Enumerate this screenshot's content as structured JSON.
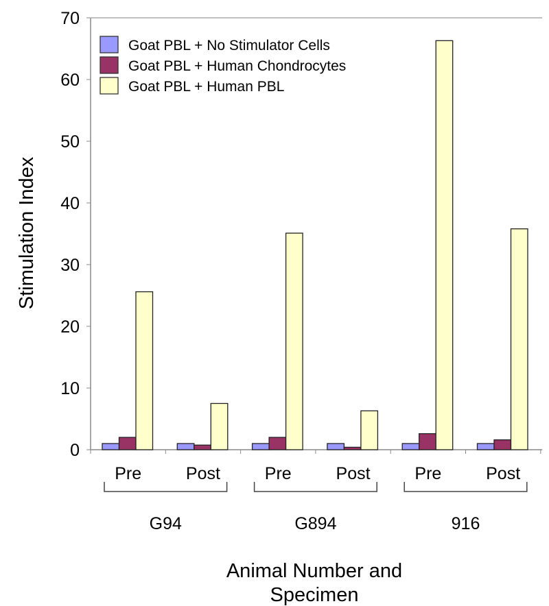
{
  "chart_data": {
    "type": "bar",
    "title": "",
    "ylabel": "Stimulation Index",
    "xlabel": "Animal Number and Specimen",
    "xlabel_lines": [
      "Animal Number and",
      "Specimen"
    ],
    "ylim": [
      0,
      70
    ],
    "yticks": [
      0,
      10,
      20,
      30,
      40,
      50,
      60,
      70
    ],
    "categories": [
      "Pre",
      "Post",
      "Pre",
      "Post",
      "Pre",
      "Post"
    ],
    "groups": [
      {
        "label": "G94",
        "span": [
          0,
          1
        ]
      },
      {
        "label": "G894",
        "span": [
          2,
          3
        ]
      },
      {
        "label": "916",
        "span": [
          4,
          5
        ]
      }
    ],
    "legend_position": "top-left",
    "grid": false,
    "series": [
      {
        "name": "Goat PBL + No Stimulator Cells",
        "color": "#9999ff",
        "values": [
          1,
          1,
          1,
          1,
          1,
          1
        ]
      },
      {
        "name": "Goat PBL + Human Chondrocytes",
        "color": "#993366",
        "values": [
          2.0,
          0.75,
          2.0,
          0.4,
          2.6,
          1.6
        ]
      },
      {
        "name": "Goat PBL + Human PBL",
        "color": "#ffffcc",
        "values": [
          25.6,
          7.5,
          35.1,
          6.3,
          66.3,
          35.8
        ]
      }
    ]
  }
}
